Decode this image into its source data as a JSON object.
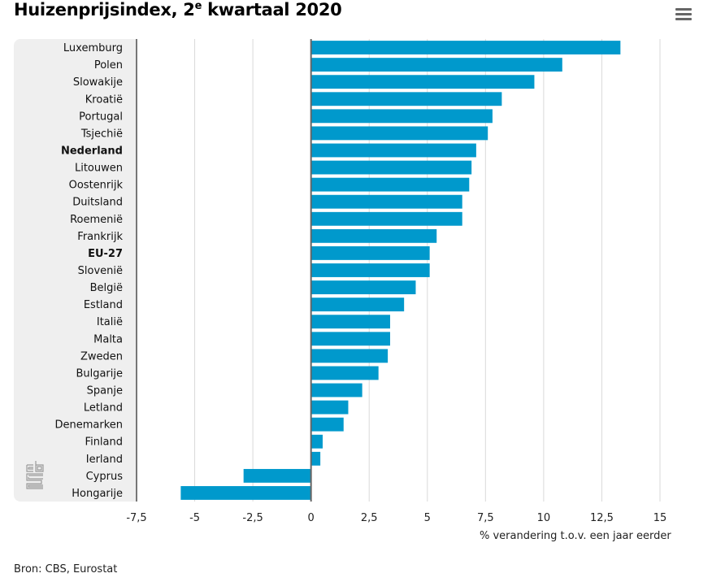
{
  "header": {
    "title_main": "Huizenprijsindex, 2",
    "title_sup": "e",
    "title_rest": " kwartaal 2020",
    "menu_icon": "hamburger-menu-icon"
  },
  "logo": "cbs-logo-icon",
  "source": "Bron: CBS, Eurostat",
  "colors": {
    "bar": "#0099cc",
    "grid": "#d9d9d9",
    "zero_line": "#666666",
    "label_panel": "#efefef"
  },
  "chart_data": {
    "type": "bar",
    "orientation": "horizontal",
    "title": "Huizenprijsindex, 2e kwartaal 2020",
    "xlabel": "% verandering t.o.v. een jaar eerder",
    "ylabel": "",
    "xlim": [
      -7.5,
      15
    ],
    "x_ticks": [
      -7.5,
      -5,
      -2.5,
      0,
      2.5,
      5,
      7.5,
      10,
      12.5,
      15
    ],
    "x_tick_labels": [
      "-7,5",
      "-5",
      "-2,5",
      "0",
      "2,5",
      "5",
      "7,5",
      "10",
      "12,5",
      "15"
    ],
    "grid": true,
    "legend": "none",
    "categories": [
      "Luxemburg",
      "Polen",
      "Slowakije",
      "Kroatië",
      "Portugal",
      "Tsjechië",
      "Nederland",
      "Litouwen",
      "Oostenrijk",
      "Duitsland",
      "Roemenië",
      "Frankrijk",
      "EU-27",
      "Slovenië",
      "België",
      "Estland",
      "Italië",
      "Malta",
      "Zweden",
      "Bulgarije",
      "Spanje",
      "Letland",
      "Denemarken",
      "Finland",
      "Ierland",
      "Cyprus",
      "Hongarije"
    ],
    "bold_categories": [
      "Nederland",
      "EU-27"
    ],
    "values": [
      13.3,
      10.8,
      9.6,
      8.2,
      7.8,
      7.6,
      7.1,
      6.9,
      6.8,
      6.5,
      6.5,
      5.4,
      5.1,
      5.1,
      4.5,
      4.0,
      3.4,
      3.4,
      3.3,
      2.9,
      2.2,
      1.6,
      1.4,
      0.5,
      0.4,
      -2.9,
      -5.6
    ]
  }
}
